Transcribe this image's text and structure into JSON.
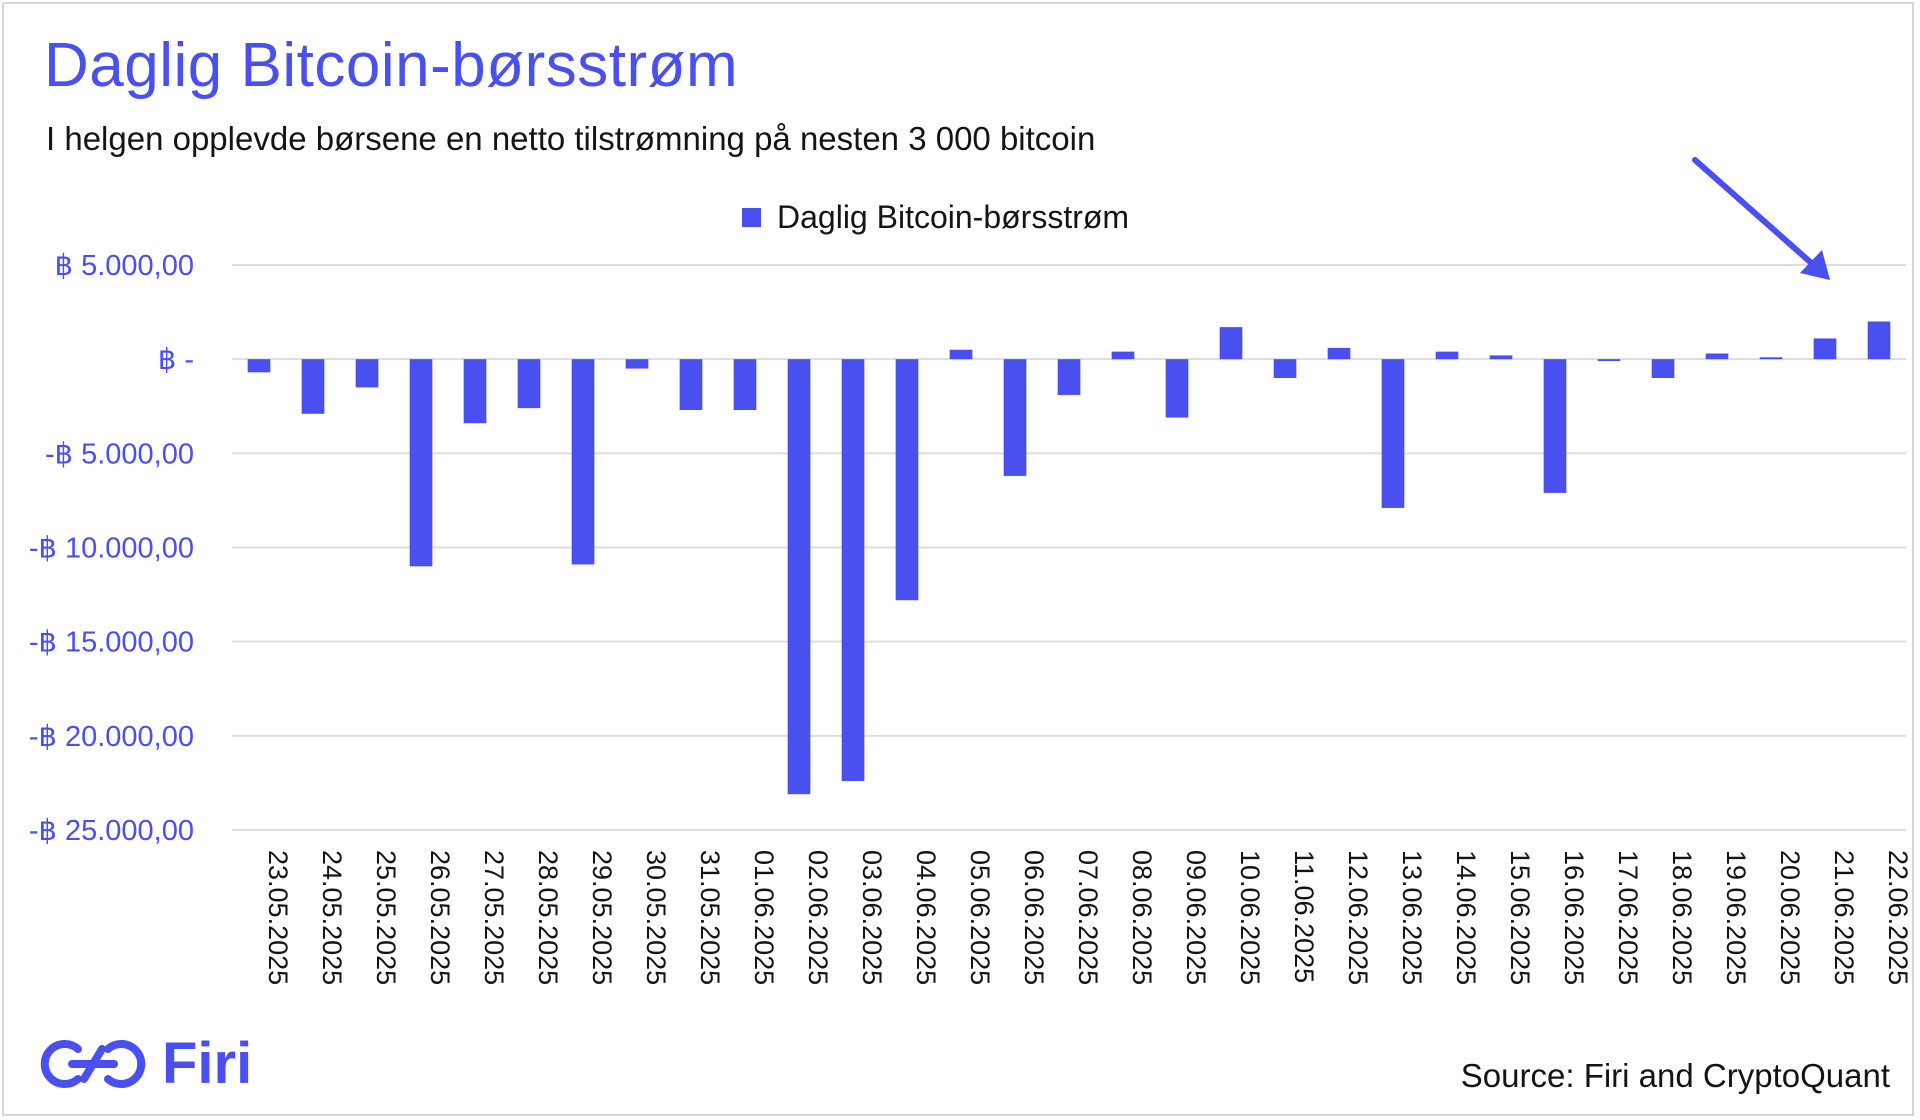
{
  "chart_data": {
    "type": "bar",
    "title": "Daglig Bitcoin-børsstrøm",
    "subtitle": "I helgen opplevde børsene en netto tilstrømning på nesten 3 000 bitcoin",
    "legend": [
      "Daglig Bitcoin-børsstrøm"
    ],
    "legend_position": "top",
    "bar_color": "#4a4ff0",
    "grid": true,
    "ylim": [
      -25000,
      5000
    ],
    "y_ticks": [
      5000,
      0,
      -5000,
      -10000,
      -15000,
      -20000,
      -25000
    ],
    "y_tick_labels": [
      "฿ 5.000,00",
      "฿ -",
      "-฿ 5.000,00",
      "-฿ 10.000,00",
      "-฿ 15.000,00",
      "-฿ 20.000,00",
      "-฿ 25.000,00"
    ],
    "categories": [
      "23.05.2025",
      "24.05.2025",
      "25.05.2025",
      "26.05.2025",
      "27.05.2025",
      "28.05.2025",
      "29.05.2025",
      "30.05.2025",
      "31.05.2025",
      "01.06.2025",
      "02.06.2025",
      "03.06.2025",
      "04.06.2025",
      "05.06.2025",
      "06.06.2025",
      "07.06.2025",
      "08.06.2025",
      "09.06.2025",
      "10.06.2025",
      "11.06.2025",
      "12.06.2025",
      "13.06.2025",
      "14.06.2025",
      "15.06.2025",
      "16.06.2025",
      "17.06.2025",
      "18.06.2025",
      "19.06.2025",
      "20.06.2025",
      "21.06.2025",
      "22.06.2025"
    ],
    "series": [
      {
        "name": "Daglig Bitcoin-børsstrøm",
        "values": [
          -700,
          -2900,
          -1500,
          -11000,
          -3400,
          -2600,
          -10900,
          -500,
          -2700,
          -2700,
          -23100,
          -22400,
          -12800,
          500,
          -6200,
          -1900,
          400,
          -3100,
          1700,
          -1000,
          600,
          -7900,
          400,
          200,
          -7100,
          -100,
          -1000,
          300,
          100,
          1100,
          2000
        ]
      }
    ],
    "annotations": [
      {
        "type": "arrow",
        "target": "21.06.2025–22.06.2025"
      }
    ]
  },
  "branding": {
    "logo_text": "Firi"
  },
  "source": "Source: Firi and CryptoQuant",
  "colors": {
    "accent": "#4a4ff0",
    "grid": "#dedede",
    "text": "#141414"
  }
}
